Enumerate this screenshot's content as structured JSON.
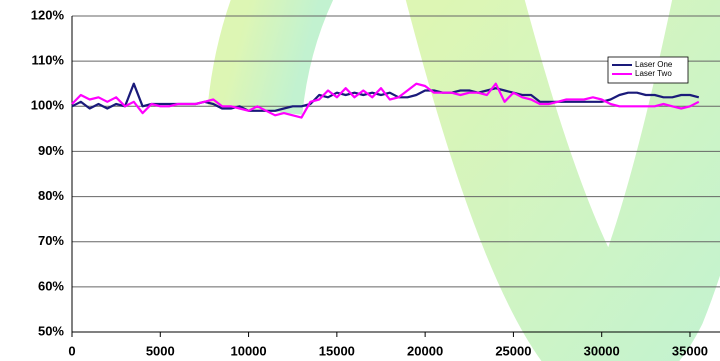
{
  "chart_data": {
    "type": "line",
    "x": [
      0,
      500,
      1000,
      1500,
      2000,
      2500,
      3000,
      3500,
      4000,
      4500,
      5000,
      5500,
      6000,
      6500,
      7000,
      7500,
      8000,
      8500,
      9000,
      9500,
      10000,
      10500,
      11000,
      11500,
      12000,
      12500,
      13000,
      13500,
      14000,
      14500,
      15000,
      15500,
      16000,
      16500,
      17000,
      17500,
      18000,
      18500,
      19000,
      19500,
      20000,
      20500,
      21000,
      21500,
      22000,
      22500,
      23000,
      23500,
      24000,
      24500,
      25000,
      25500,
      26000,
      26500,
      27000,
      27500,
      28000,
      28500,
      29000,
      29500,
      30000,
      30500,
      31000,
      31500,
      32000,
      32500,
      33000,
      33500,
      34000,
      34500,
      35000,
      35500
    ],
    "series": [
      {
        "name": "Laser One",
        "color": "#1a1a7a",
        "values": [
          100,
          101,
          99.5,
          100.5,
          99.5,
          100.5,
          100,
          105,
          100,
          100.5,
          100.5,
          100.5,
          100.5,
          100.5,
          100.5,
          101,
          100.5,
          99.5,
          99.5,
          100,
          99,
          99,
          99,
          99,
          99.5,
          100,
          100,
          100.5,
          102.5,
          102,
          103,
          102.5,
          103,
          102.5,
          103,
          102.5,
          103,
          102,
          102,
          102.5,
          103.5,
          103.5,
          103,
          103,
          103.5,
          103.5,
          103,
          103.5,
          104,
          103.5,
          103,
          102.5,
          102.5,
          101,
          101,
          101,
          101,
          101,
          101,
          101,
          101,
          101.5,
          102.5,
          103,
          103,
          102.5,
          102.5,
          102,
          102,
          102.5,
          102.5,
          102
        ]
      },
      {
        "name": "Laser Two",
        "color": "#ff00ff",
        "values": [
          100.5,
          102.5,
          101.5,
          102,
          101,
          102,
          100,
          101,
          98.5,
          100.5,
          100,
          100,
          100.5,
          100.5,
          100.5,
          101,
          101.5,
          100,
          100,
          99.5,
          99,
          100,
          99,
          98,
          98.5,
          98,
          97.5,
          101,
          101.5,
          103.5,
          102,
          104,
          102,
          103.5,
          102,
          104,
          101.5,
          102,
          103.5,
          105,
          104.5,
          103,
          103,
          103,
          102.5,
          103,
          103,
          102.5,
          105,
          101,
          103,
          102,
          101.5,
          100.5,
          100.5,
          101,
          101.5,
          101.5,
          101.5,
          102,
          101.5,
          100.5,
          100,
          100,
          100,
          100,
          100,
          100.5,
          100,
          99.5,
          100,
          101
        ]
      }
    ],
    "xlim": [
      0,
      36700
    ],
    "xticks": [
      0,
      5000,
      10000,
      15000,
      20000,
      25000,
      30000,
      35000
    ],
    "ylim": [
      50,
      120
    ],
    "yticks": [
      {
        "value": 50,
        "label": "50%"
      },
      {
        "value": 60,
        "label": "60%"
      },
      {
        "value": 70,
        "label": "70%"
      },
      {
        "value": 80,
        "label": "80%"
      },
      {
        "value": 90,
        "label": "90%"
      },
      {
        "value": 100,
        "label": "100%"
      },
      {
        "value": 110,
        "label": "110%"
      },
      {
        "value": 120,
        "label": "120%"
      }
    ],
    "grid": true,
    "legend": "upper right"
  }
}
